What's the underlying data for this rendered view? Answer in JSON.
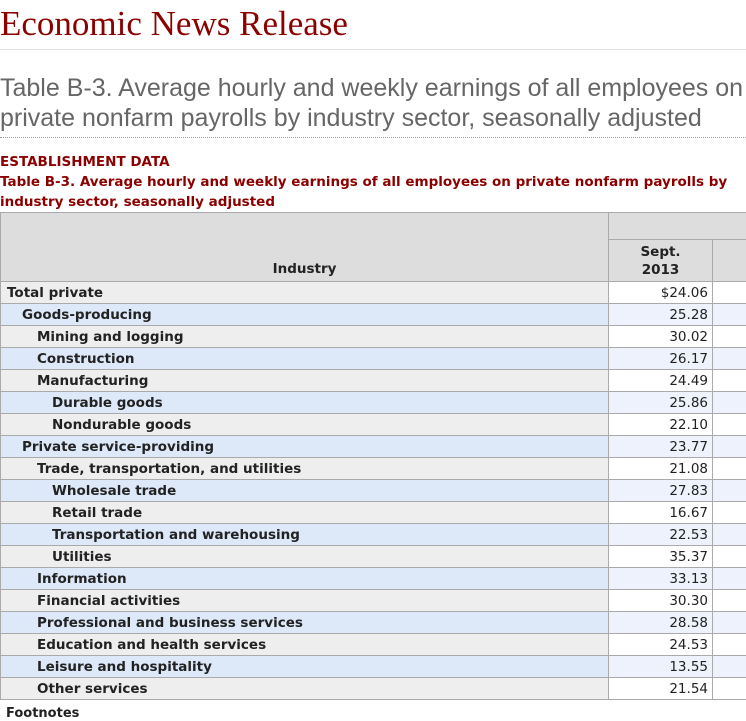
{
  "page_title": "Economic News Release",
  "table_title": "Table B-3. Average hourly and weekly earnings of all employees on private nonfarm payrolls by industry sector, seasonally adjusted",
  "section": "ESTABLISHMENT DATA",
  "caption": "Table B-3. Average hourly and weekly earnings of all employees on private nonfarm payrolls by industry sector, seasonally adjusted",
  "header": {
    "industry": "Industry",
    "col1_line1": "Sept.",
    "col1_line2": "2013"
  },
  "rows": [
    {
      "label": "Total private",
      "value": "$24.06",
      "indent": 0
    },
    {
      "label": "Goods-producing",
      "value": "25.28",
      "indent": 1
    },
    {
      "label": "Mining and logging",
      "value": "30.02",
      "indent": 2
    },
    {
      "label": "Construction",
      "value": "26.17",
      "indent": 2
    },
    {
      "label": "Manufacturing",
      "value": "24.49",
      "indent": 2
    },
    {
      "label": "Durable goods",
      "value": "25.86",
      "indent": 3
    },
    {
      "label": "Nondurable goods",
      "value": "22.10",
      "indent": 3
    },
    {
      "label": "Private service-providing",
      "value": "23.77",
      "indent": 1
    },
    {
      "label": "Trade, transportation, and utilities",
      "value": "21.08",
      "indent": 2
    },
    {
      "label": "Wholesale trade",
      "value": "27.83",
      "indent": 3
    },
    {
      "label": "Retail trade",
      "value": "16.67",
      "indent": 3
    },
    {
      "label": "Transportation and warehousing",
      "value": "22.53",
      "indent": 3
    },
    {
      "label": "Utilities",
      "value": "35.37",
      "indent": 3
    },
    {
      "label": "Information",
      "value": "33.13",
      "indent": 2
    },
    {
      "label": "Financial activities",
      "value": "30.30",
      "indent": 2
    },
    {
      "label": "Professional and business services",
      "value": "28.58",
      "indent": 2
    },
    {
      "label": "Education and health services",
      "value": "24.53",
      "indent": 2
    },
    {
      "label": "Leisure and hospitality",
      "value": "13.55",
      "indent": 2
    },
    {
      "label": "Other services",
      "value": "21.54",
      "indent": 2
    }
  ],
  "footnotes_label": "Footnotes"
}
